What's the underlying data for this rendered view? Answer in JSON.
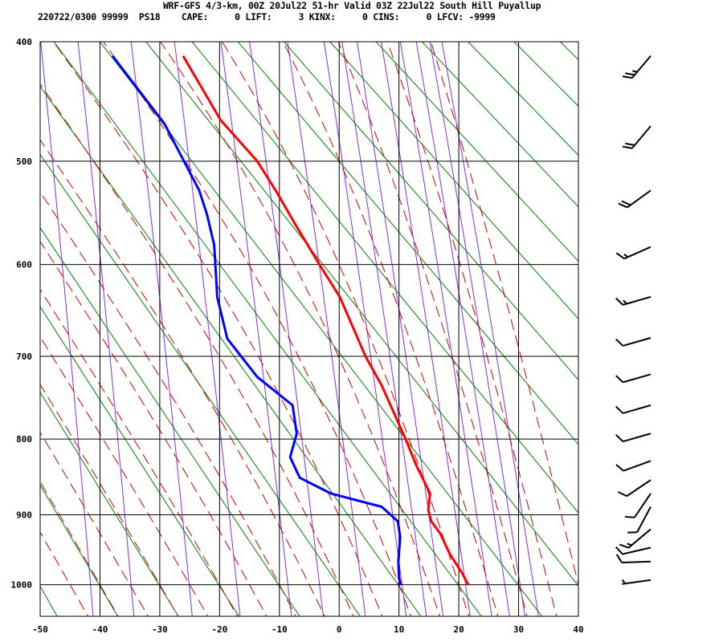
{
  "header": {
    "title": "WRF-GFS 4/3-km, 00Z 20Jul22 51-hr Valid 03Z 22Jul22 South Hill Puyallup",
    "info": "220722/0300 99999  PS18    CAPE:     0 LIFT:     3 KINX:     0 CINS:     0 LFCV: -9999"
  },
  "chart_data": {
    "type": "line",
    "diagram": "thermodynamic sounding (temperature vs pressure)",
    "xlim": [
      -50,
      40
    ],
    "ylim_hPa": [
      1050,
      400
    ],
    "x_ticks": [
      "-50",
      "-40",
      "-30",
      "-20",
      "-10",
      "0",
      "10",
      "20",
      "30",
      "40"
    ],
    "y_ticks": [
      "400",
      "500",
      "600",
      "700",
      "800",
      "900",
      "1000"
    ],
    "grid": true,
    "colors": {
      "temperature": "#ff0000",
      "dewpoint": "#0000ff",
      "dry_adiabat": "#008000",
      "moist_adiabat": "#cc0000",
      "mixing_ratio": "#8a2be2",
      "grid": "#000000"
    },
    "series": [
      {
        "key": "temperature",
        "p": [
          411,
          464,
          500,
          529,
          560,
          600,
          634,
          700,
          734,
          800,
          834,
          871,
          893,
          909,
          926,
          955,
          982,
          1000
        ],
        "t": [
          -26.1,
          -19.8,
          -13.7,
          -10.4,
          -7.3,
          -3.3,
          0.1,
          4.4,
          7.1,
          11.1,
          12.9,
          15.2,
          14.9,
          15.4,
          16.9,
          18.5,
          20.5,
          21.6
        ]
      },
      {
        "key": "dewpoint",
        "p": [
          411,
          467,
          527,
          550,
          580,
          600,
          634,
          680,
          724,
          758,
          793,
          823,
          850,
          871,
          889,
          909,
          931,
          966,
          990,
          1000
        ],
        "t": [
          -37.9,
          -29.2,
          -23.4,
          -22.1,
          -20.9,
          -20.7,
          -20.4,
          -18.7,
          -13.7,
          -7.8,
          -7.1,
          -8.2,
          -6.6,
          -1.4,
          7.1,
          9.8,
          10.2,
          9.9,
          10.0,
          10.3
        ]
      }
    ],
    "dry_adiabats_theta_K": [
      223,
      233,
      243,
      253,
      263,
      273,
      283,
      293,
      303,
      313,
      323,
      333,
      343,
      353,
      363,
      373,
      383,
      393,
      403,
      413
    ],
    "moist_adiabats_t1000_C": [
      -45,
      -40,
      -35,
      -30,
      -25,
      -20,
      -15,
      -10,
      -5,
      0,
      5,
      10,
      15,
      20,
      25,
      30,
      35,
      40
    ],
    "mixing_ratio_lines_gkg": [
      0.1,
      0.2,
      0.5,
      1,
      2,
      3,
      5,
      8,
      10,
      12,
      16,
      20,
      24,
      28,
      32
    ],
    "wind_barbs": [
      {
        "p": 411,
        "dir": 220,
        "kt": 25
      },
      {
        "p": 469,
        "dir": 220,
        "kt": 20
      },
      {
        "p": 527,
        "dir": 234,
        "kt": 20
      },
      {
        "p": 582,
        "dir": 246,
        "kt": 15
      },
      {
        "p": 634,
        "dir": 254,
        "kt": 15
      },
      {
        "p": 679,
        "dir": 254,
        "kt": 10
      },
      {
        "p": 721,
        "dir": 254,
        "kt": 10
      },
      {
        "p": 758,
        "dir": 254,
        "kt": 10
      },
      {
        "p": 793,
        "dir": 254,
        "kt": 10
      },
      {
        "p": 828,
        "dir": 250,
        "kt": 10
      },
      {
        "p": 853,
        "dir": 236,
        "kt": 10
      },
      {
        "p": 871,
        "dir": 214,
        "kt": 10
      },
      {
        "p": 889,
        "dir": 208,
        "kt": 10
      },
      {
        "p": 920,
        "dir": 230,
        "kt": 15
      },
      {
        "p": 946,
        "dir": 257,
        "kt": 10
      },
      {
        "p": 966,
        "dir": 268,
        "kt": 10
      },
      {
        "p": 993,
        "dir": 262,
        "kt": 5
      }
    ]
  }
}
